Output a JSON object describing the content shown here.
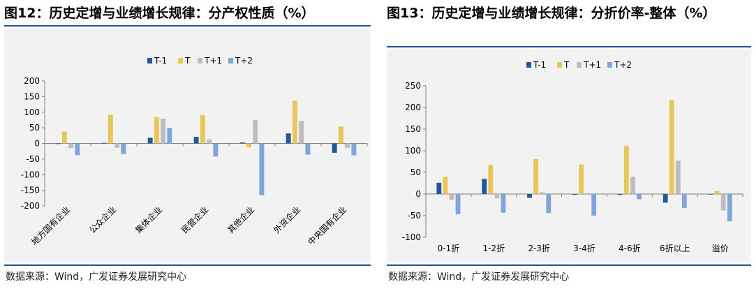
{
  "figures": {
    "left": {
      "title": "图12：历史定增与业绩增长规律：分产权性质（%）",
      "source": "数据来源：Wind，广发证券发展研究中心"
    },
    "right": {
      "title": "图13：历史定增与业绩增长规律：分折价率-整体（%）",
      "source": "数据来源：Wind，广发证券发展研究中心"
    }
  },
  "chart_data": [
    {
      "type": "bar",
      "title": "图12：历史定增与业绩增长规律：分产权性质（%）",
      "categories": [
        "地方国有企业",
        "公众企业",
        "集体企业",
        "民营企业",
        "其他企业",
        "外资企业",
        "中央国有企业"
      ],
      "series": [
        {
          "name": "T-1",
          "color": "#1f5a96",
          "values": [
            -2,
            2,
            18,
            21,
            3,
            32,
            -30
          ]
        },
        {
          "name": "T",
          "color": "#e8c65a",
          "values": [
            38,
            92,
            84,
            91,
            -13,
            137,
            54
          ]
        },
        {
          "name": "T+1",
          "color": "#bdbdbd",
          "values": [
            -15,
            -14,
            79,
            13,
            75,
            72,
            -14
          ]
        },
        {
          "name": "T+2",
          "color": "#7ea6dc",
          "values": [
            -38,
            -34,
            50,
            -42,
            -166,
            -36,
            -38
          ]
        }
      ],
      "ylim": [
        -200,
        200
      ],
      "yticks": [
        200,
        150,
        100,
        50,
        0,
        -50,
        -100,
        -150,
        -200
      ],
      "xlabel": "",
      "ylabel": "",
      "legend": "top"
    },
    {
      "type": "bar",
      "title": "图13：历史定增与业绩增长规律：分折价率-整体（%）",
      "categories": [
        "0-1折",
        "1-2折",
        "2-3折",
        "3-4折",
        "4-6折",
        "6折以上",
        "溢价"
      ],
      "series": [
        {
          "name": "T-1",
          "color": "#1f5a96",
          "values": [
            26,
            35,
            -9,
            -2,
            -2,
            -20,
            0
          ]
        },
        {
          "name": "T",
          "color": "#e8c65a",
          "values": [
            40,
            67,
            81,
            68,
            111,
            217,
            7
          ]
        },
        {
          "name": "T+1",
          "color": "#bdbdbd",
          "values": [
            -13,
            -10,
            4,
            2,
            40,
            77,
            -38
          ]
        },
        {
          "name": "T+2",
          "color": "#7ea6dc",
          "values": [
            -47,
            -43,
            -44,
            -50,
            -12,
            -32,
            -63
          ]
        }
      ],
      "ylim": [
        -100,
        250
      ],
      "yticks": [
        250,
        200,
        150,
        100,
        50,
        0,
        -50,
        -100
      ],
      "xlabel": "",
      "ylabel": "",
      "legend": "top"
    }
  ]
}
